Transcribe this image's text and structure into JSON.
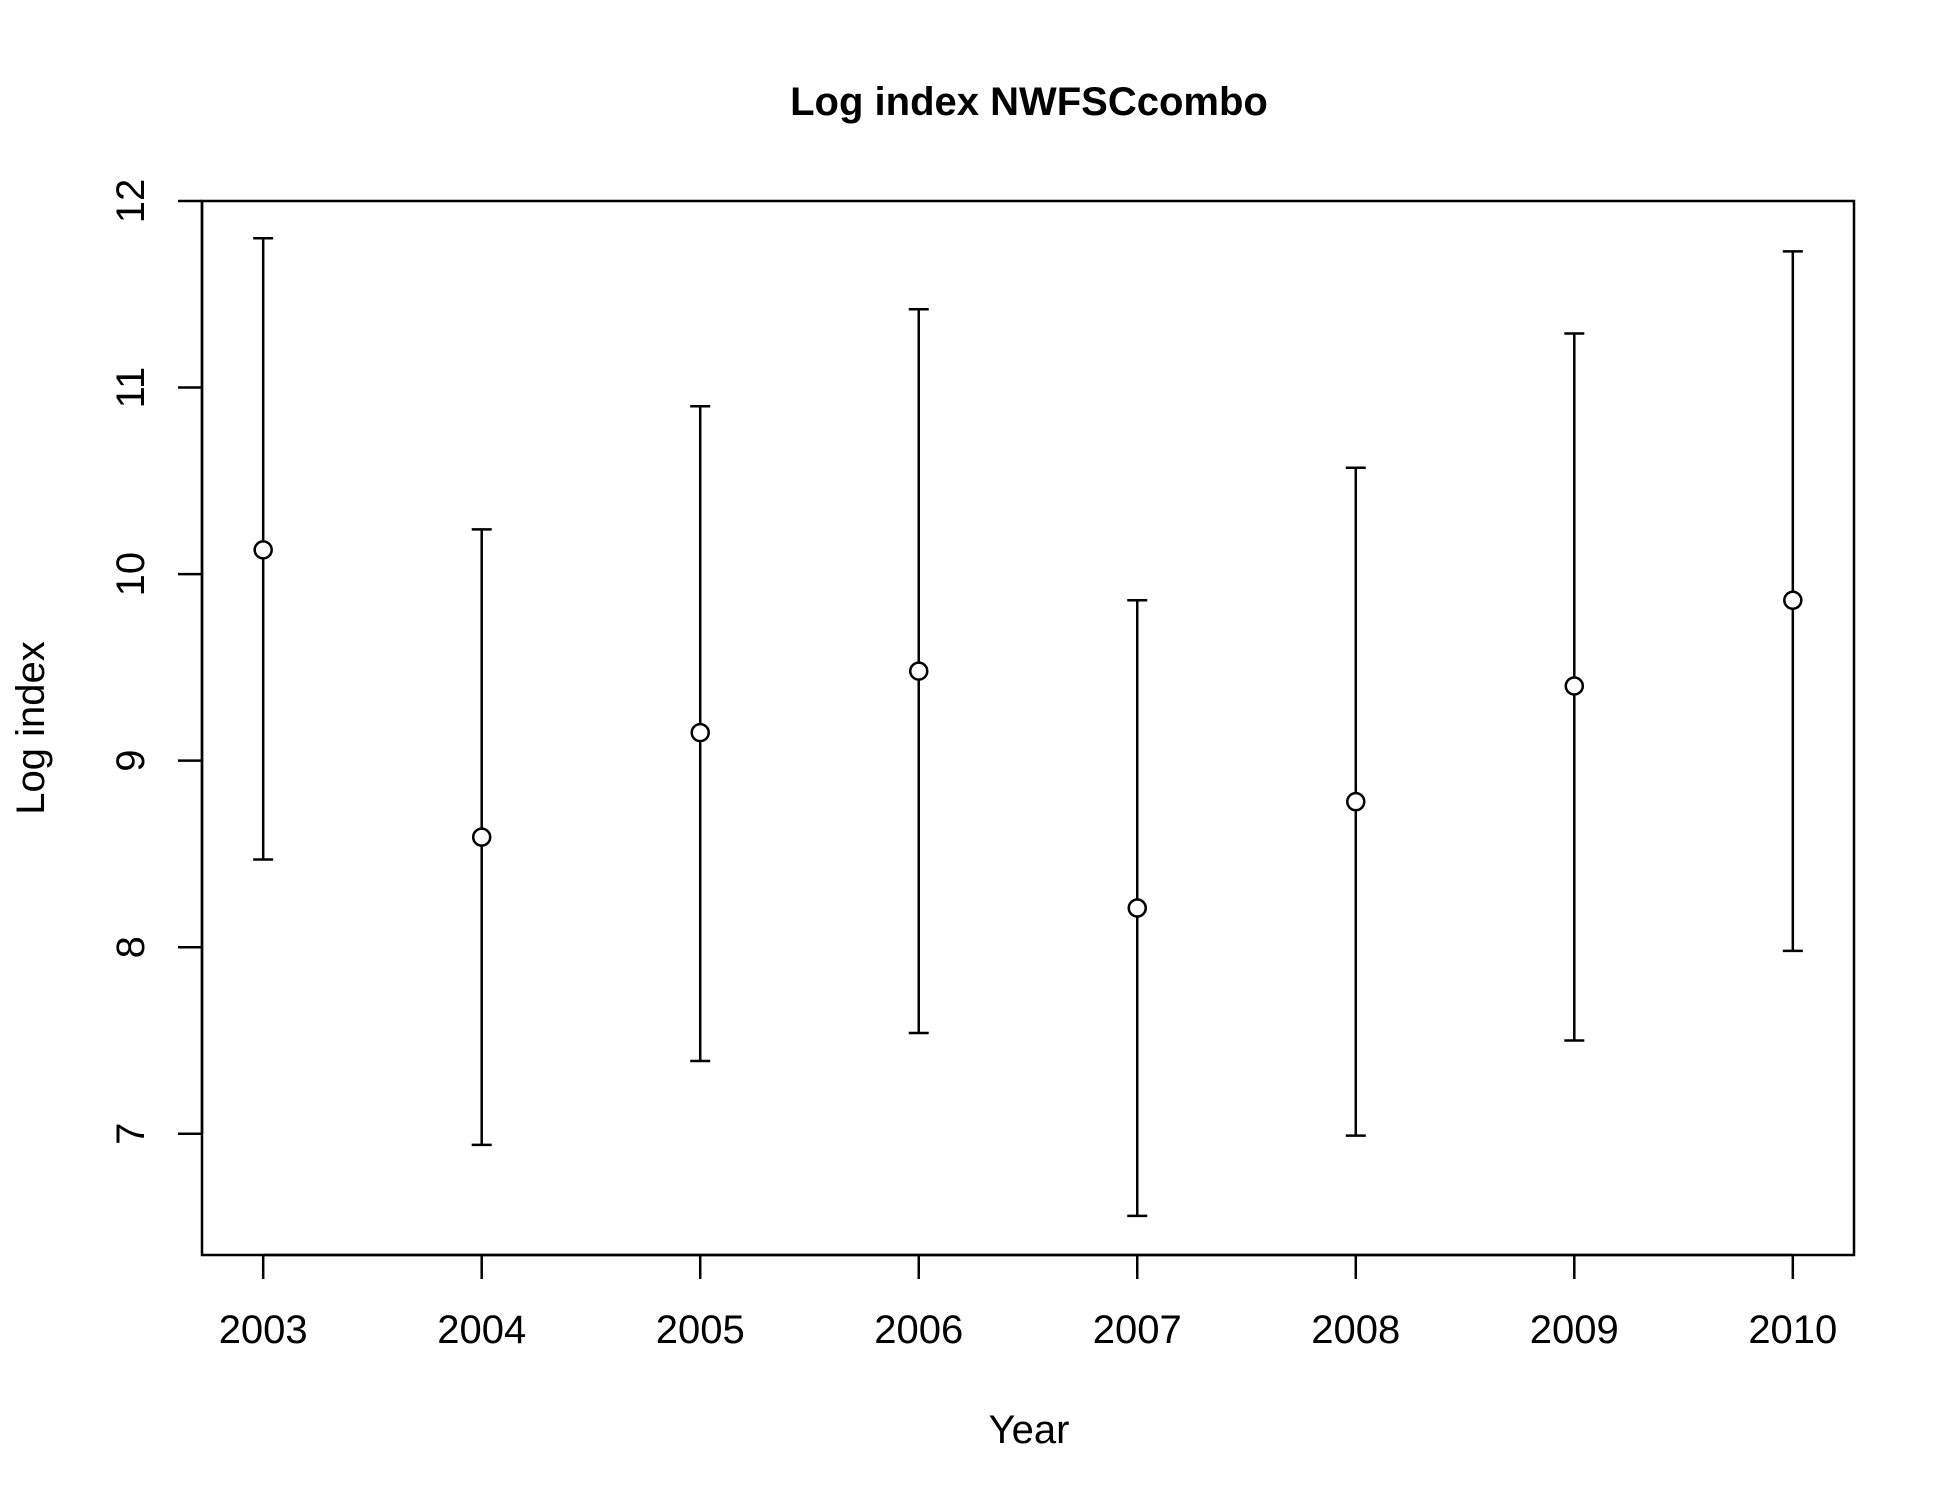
{
  "chart_data": {
    "type": "scatter",
    "title": "Log index NWFSCcombo",
    "xlabel": "Year",
    "ylabel": "Log index",
    "x": [
      2003,
      2004,
      2005,
      2006,
      2007,
      2008,
      2009,
      2010
    ],
    "y": [
      10.13,
      8.59,
      9.15,
      9.48,
      8.21,
      8.78,
      9.4,
      9.86
    ],
    "lower": [
      8.47,
      6.94,
      7.39,
      7.54,
      6.56,
      6.99,
      7.5,
      7.98
    ],
    "upper": [
      11.8,
      10.24,
      10.9,
      11.42,
      9.86,
      10.57,
      11.29,
      11.73
    ],
    "x_ticks": [
      "2003",
      "2004",
      "2005",
      "2006",
      "2007",
      "2008",
      "2009",
      "2010"
    ],
    "y_ticks": [
      "7",
      "8",
      "9",
      "10",
      "11",
      "12"
    ],
    "xlim": [
      2002.72,
      2010.28
    ],
    "ylim": [
      6.35,
      12.0
    ],
    "grid": false,
    "marker": "open-circle",
    "error_bars": true,
    "colors": {
      "ink": "#000000",
      "marker_fill": "#ffffff",
      "background": "#ffffff"
    }
  }
}
